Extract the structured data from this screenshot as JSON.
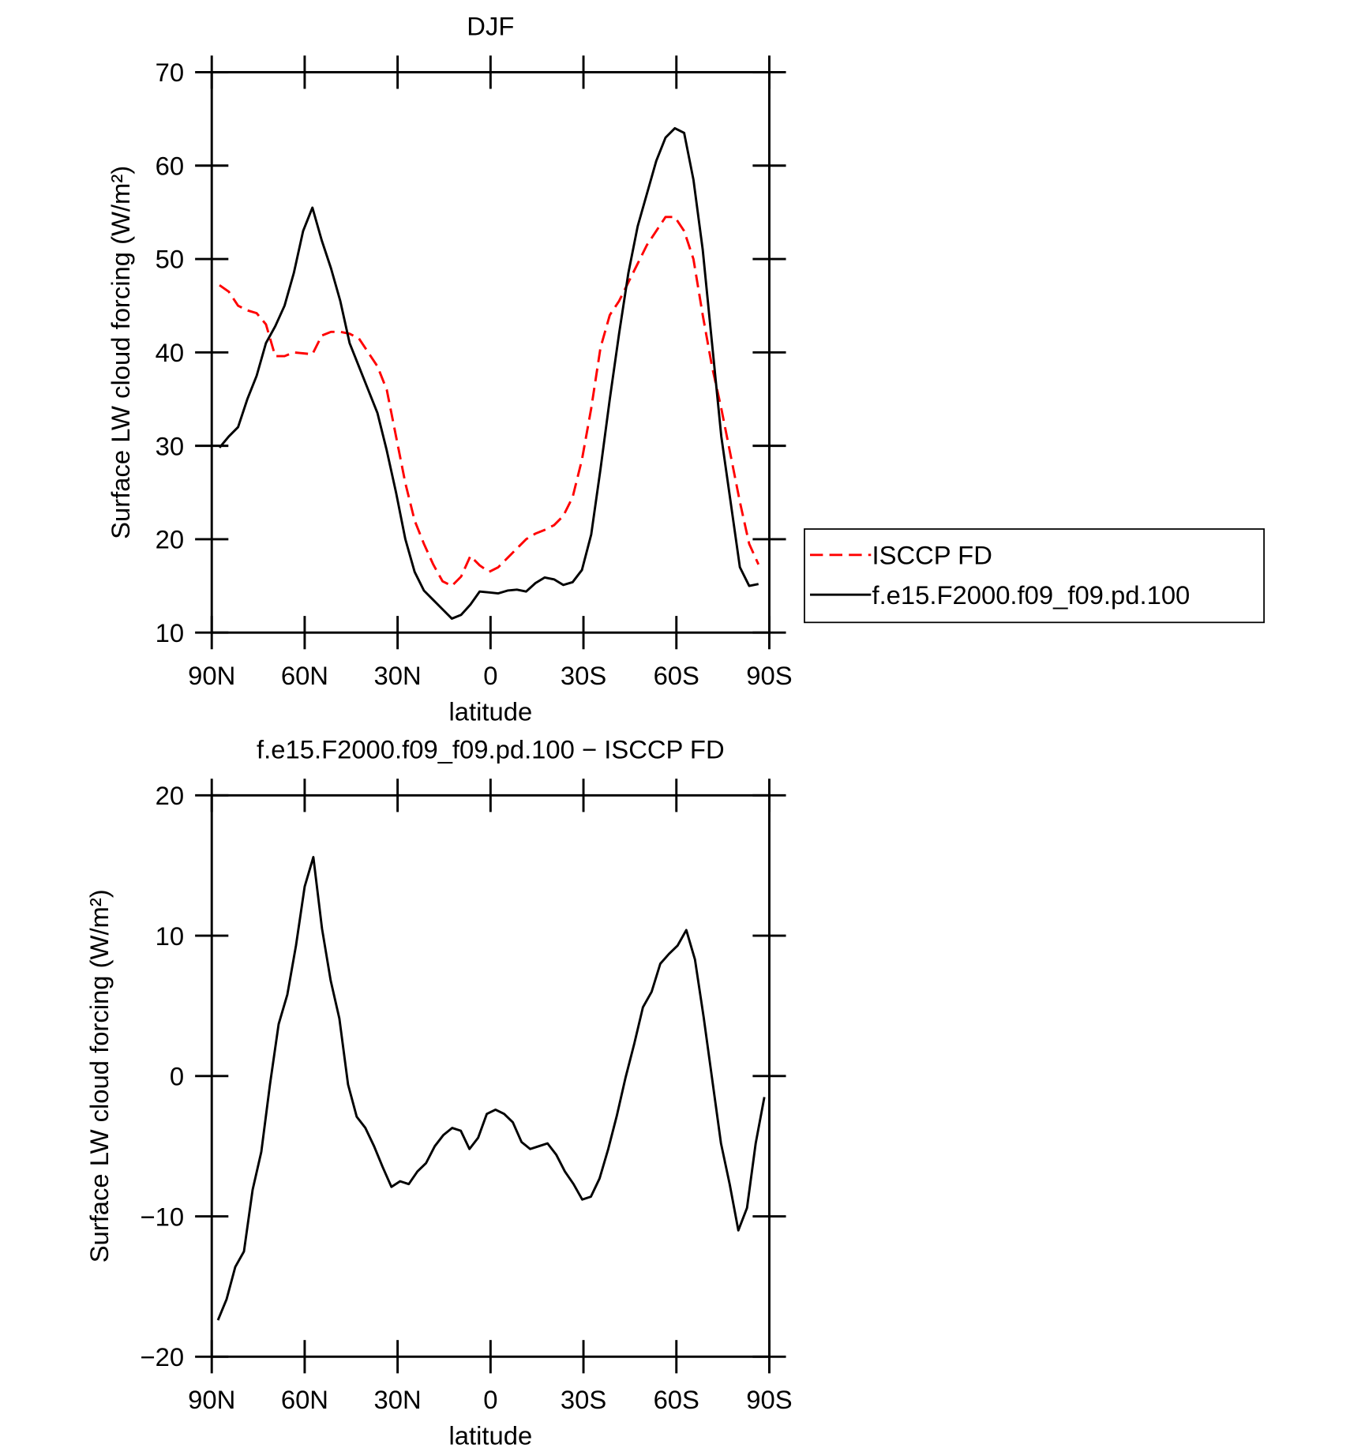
{
  "chart_data": [
    {
      "type": "line",
      "title": "DJF",
      "x_label": "latitude",
      "y_label": "Surface LW cloud forcing (W/m²)",
      "xlim": [
        90,
        -90
      ],
      "xticks": [
        {
          "value": 90,
          "label": "90N"
        },
        {
          "value": 60,
          "label": "60N"
        },
        {
          "value": 30,
          "label": "30N"
        },
        0,
        {
          "value": -30,
          "label": "30S"
        },
        {
          "value": -60,
          "label": "60S"
        },
        {
          "value": -90,
          "label": "90S"
        }
      ],
      "ylim": [
        10,
        70
      ],
      "yticks": [
        10,
        20,
        30,
        40,
        50,
        60,
        70
      ],
      "legend": "right",
      "x": [
        87.5,
        84.5,
        81.5,
        78.5,
        75.5,
        72.5,
        69.5,
        66.5,
        63.5,
        60.5,
        57.5,
        54.5,
        51.5,
        48.5,
        45.5,
        42.5,
        39.5,
        36.5,
        33.5,
        30.5,
        27.5,
        24.5,
        21.5,
        18.5,
        15.5,
        12.5,
        9.5,
        6.5,
        3.5,
        0.5,
        -2.5,
        -5.5,
        -8.5,
        -11.5,
        -14.5,
        -17.5,
        -20.5,
        -23.5,
        -26.5,
        -29.5,
        -32.5,
        -35.5,
        -38.5,
        -41.5,
        -44.5,
        -47.5,
        -50.5,
        -53.5,
        -56.5,
        -59.5,
        -62.5,
        -65.5,
        -68.5,
        -71.5,
        -74.5,
        -77.5,
        -80.5,
        -83.5,
        -86.5
      ],
      "series": [
        {
          "name": "ISCCP FD",
          "color": "#ff0000",
          "style": "dashed",
          "values": [
            47.2,
            46.5,
            45,
            44.5,
            44.2,
            43,
            39.6,
            39.6,
            40,
            39.9,
            39.8,
            41.8,
            42.2,
            42.2,
            42,
            41.5,
            40,
            38.5,
            36,
            31,
            26,
            22,
            19.5,
            17.3,
            15.5,
            15,
            16,
            18.2,
            17.2,
            16.5,
            17,
            18,
            19,
            20,
            20.6,
            21,
            21.5,
            22.5,
            24.5,
            28.5,
            34,
            40.5,
            44,
            45.5,
            47.5,
            49.5,
            51.5,
            53,
            54.5,
            54.5,
            53,
            50,
            44,
            38.5,
            34,
            29,
            24,
            19.5,
            17.3
          ]
        },
        {
          "name": "f.e15.F2000.f09_f09.pd.100",
          "color": "#000000",
          "style": "solid",
          "values": [
            29.8,
            31,
            32,
            35,
            37.5,
            41,
            42.8,
            45,
            48.5,
            53,
            55.5,
            52,
            49,
            45.5,
            41,
            38.5,
            36,
            33.5,
            29.5,
            25,
            20,
            16.5,
            14.5,
            13.5,
            12.5,
            11.5,
            11.9,
            13,
            14.4,
            14.3,
            14.2,
            14.5,
            14.6,
            14.4,
            15.3,
            15.9,
            15.7,
            15.1,
            15.4,
            16.7,
            20.5,
            27.5,
            35,
            42,
            48.5,
            53.5,
            57,
            60.5,
            63,
            64,
            63.5,
            58.5,
            51,
            41,
            31,
            24,
            17,
            15,
            15.2
          ]
        }
      ]
    },
    {
      "type": "line",
      "title": "f.e15.F2000.f09_f09.pd.100 − ISCCP FD",
      "x_label": "latitude",
      "y_label": "Surface LW cloud forcing (W/m²)",
      "xlim": [
        90,
        -90
      ],
      "xticks": [
        {
          "value": 90,
          "label": "90N"
        },
        {
          "value": 60,
          "label": "60N"
        },
        {
          "value": 30,
          "label": "30N"
        },
        0,
        {
          "value": -30,
          "label": "30S"
        },
        {
          "value": -60,
          "label": "60S"
        },
        {
          "value": -90,
          "label": "90S"
        }
      ],
      "ylim": [
        -20,
        20
      ],
      "yticks": [
        {
          "value": -20,
          "label": "−20"
        },
        {
          "value": -10,
          "label": "−10"
        },
        0,
        10,
        20
      ],
      "x": [
        88,
        85.2,
        82.4,
        79.6,
        76.8,
        74,
        71.2,
        68.4,
        65.6,
        62.8,
        60,
        57.2,
        54.4,
        51.6,
        48.8,
        46,
        43.2,
        40.4,
        37.6,
        34.8,
        32,
        29.2,
        26.4,
        23.6,
        20.8,
        18,
        15.2,
        12.4,
        9.6,
        6.8,
        4,
        1.2,
        -1.6,
        -4.4,
        -7.2,
        -10,
        -12.8,
        -15.6,
        -18.4,
        -21.2,
        -24,
        -26.8,
        -29.6,
        -32.4,
        -35.2,
        -38,
        -40.8,
        -43.6,
        -46.4,
        -49.2,
        -52,
        -54.8,
        -57.6,
        -60.4,
        -63.2,
        -66,
        -68.8,
        -71.6,
        -74.4,
        -77.2,
        -80,
        -82.8,
        -85.6,
        -88.4
      ],
      "series": [
        {
          "color": "#000000",
          "style": "solid",
          "values": [
            -17.4,
            -15.9,
            -13.6,
            -12.5,
            -8.1,
            -5.4,
            -0.6,
            3.7,
            5.8,
            9.3,
            13.5,
            15.6,
            10.5,
            6.8,
            4.1,
            -0.6,
            -2.9,
            -3.7,
            -5,
            -6.5,
            -7.9,
            -7.5,
            -7.7,
            -6.8,
            -6.2,
            -5,
            -4.2,
            -3.7,
            -3.9,
            -5.2,
            -4.4,
            -2.7,
            -2.4,
            -2.7,
            -3.3,
            -4.7,
            -5.2,
            -5,
            -4.8,
            -5.6,
            -6.8,
            -7.7,
            -8.8,
            -8.6,
            -7.3,
            -5.2,
            -2.8,
            -0.1,
            2.3,
            4.9,
            6,
            8,
            8.7,
            9.3,
            10.4,
            8.3,
            4.2,
            -0.3,
            -4.8,
            -7.7,
            -11,
            -9.4,
            -4.8,
            -1.5
          ]
        }
      ]
    }
  ]
}
